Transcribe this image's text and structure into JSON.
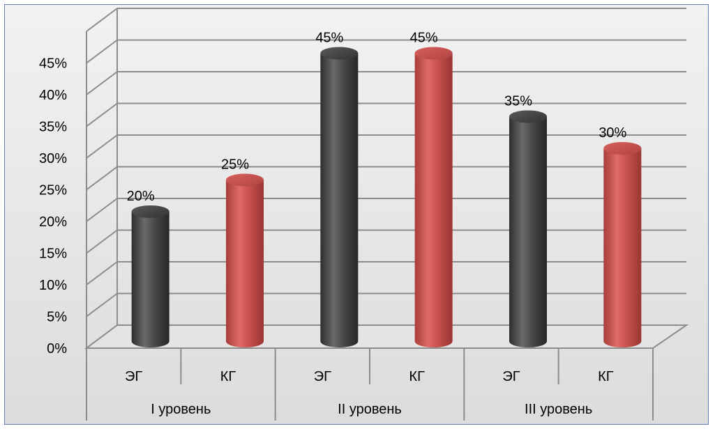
{
  "chart_data": {
    "type": "bar",
    "style": "3d-cylinder",
    "title": "",
    "xlabel": "",
    "ylabel": "",
    "ylim": [
      0,
      45
    ],
    "y_ticks": [
      "0%",
      "5%",
      "10%",
      "15%",
      "20%",
      "25%",
      "30%",
      "35%",
      "40%",
      "45%"
    ],
    "y_unit": "%",
    "grid": true,
    "legend": "none",
    "groups": [
      "I уровень",
      "II уровень",
      "III уровень"
    ],
    "categories": [
      "ЭГ",
      "КГ",
      "ЭГ",
      "КГ",
      "ЭГ",
      "КГ"
    ],
    "values": [
      20,
      25,
      45,
      45,
      35,
      30
    ],
    "data_labels": [
      "20%",
      "25%",
      "45%",
      "45%",
      "35%",
      "30%"
    ],
    "colors": {
      "ЭГ": "#4a4a4a",
      "КГ": "#c0504d"
    }
  }
}
